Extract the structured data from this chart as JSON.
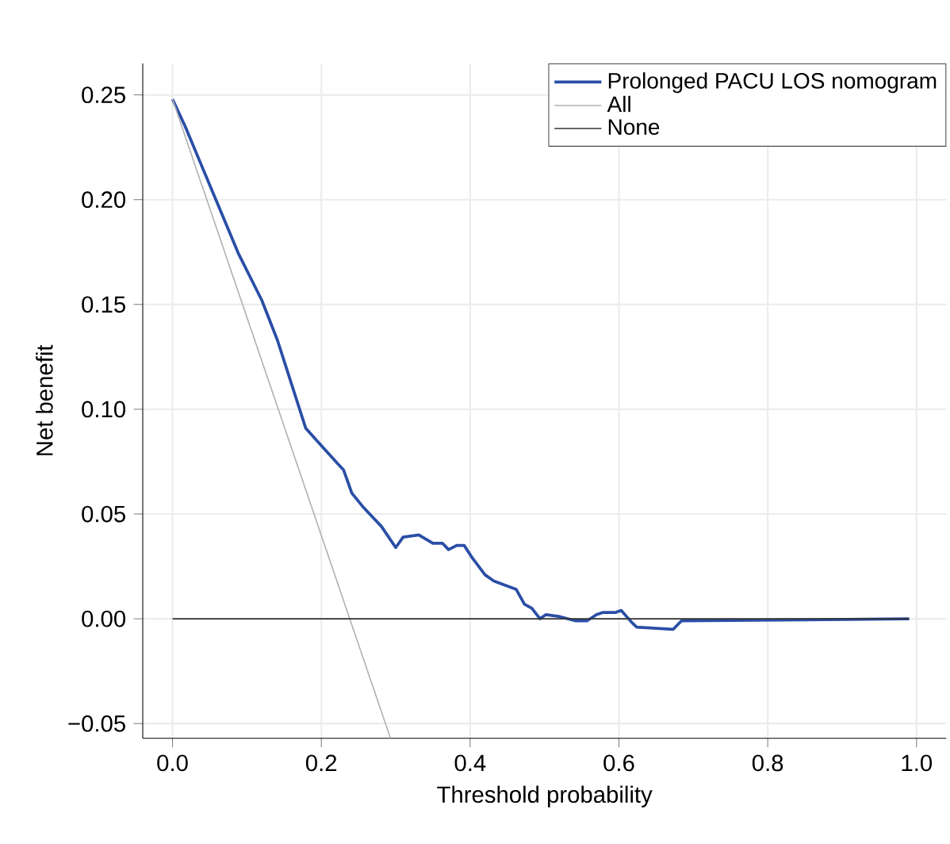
{
  "chart_data": {
    "type": "line",
    "xlabel": "Threshold probability",
    "ylabel": "Net benefit",
    "xlim": [
      -0.04,
      1.04
    ],
    "ylim": [
      -0.057,
      0.265
    ],
    "xticks": [
      {
        "value": 0,
        "label": "0.0"
      },
      {
        "value": 0.2,
        "label": "0.2"
      },
      {
        "value": 0.4,
        "label": "0.4"
      },
      {
        "value": 0.6,
        "label": "0.6"
      },
      {
        "value": 0.8,
        "label": "0.8"
      },
      {
        "value": 1,
        "label": "1.0"
      }
    ],
    "yticks": [
      {
        "value": -0.05,
        "label": "−0.05"
      },
      {
        "value": 0,
        "label": "0.00"
      },
      {
        "value": 0.05,
        "label": "0.05"
      },
      {
        "value": 0.1,
        "label": "0.10"
      },
      {
        "value": 0.15,
        "label": "0.15"
      },
      {
        "value": 0.2,
        "label": "0.20"
      },
      {
        "value": 0.25,
        "label": "0.25"
      }
    ],
    "grid": true,
    "legend": "top right",
    "series": [
      {
        "name": "Prolonged PACU LOS nomogram",
        "color": "#2a4ea6",
        "x": [
          0,
          0.017,
          0.089,
          0.12,
          0.141,
          0.179,
          0.194,
          0.222,
          0.23,
          0.241,
          0.257,
          0.281,
          0.3,
          0.31,
          0.331,
          0.35,
          0.363,
          0.371,
          0.382,
          0.392,
          0.403,
          0.42,
          0.432,
          0.447,
          0.462,
          0.473,
          0.483,
          0.494,
          0.502,
          0.521,
          0.542,
          0.557,
          0.57,
          0.578,
          0.595,
          0.603,
          0.618,
          0.624,
          0.673,
          0.684,
          0.99
        ],
        "values": [
          0.248,
          0.235,
          0.174,
          0.152,
          0.133,
          0.091,
          0.085,
          0.074,
          0.071,
          0.06,
          0.053,
          0.044,
          0.034,
          0.039,
          0.04,
          0.036,
          0.036,
          0.033,
          0.035,
          0.035,
          0.029,
          0.021,
          0.018,
          0.016,
          0.014,
          0.007,
          0.005,
          0.0,
          0.002,
          0.001,
          -0.001,
          -0.001,
          0.002,
          0.003,
          0.003,
          0.004,
          -0.002,
          -0.004,
          -0.005,
          -0.001,
          0.0
        ]
      },
      {
        "name": "All",
        "color": "#b0b0b0",
        "x": [
          0,
          0.293
        ],
        "values": [
          0.248,
          -0.057
        ]
      },
      {
        "name": "None",
        "color": "#333333",
        "x": [
          0,
          0.99
        ],
        "values": [
          0,
          0
        ]
      }
    ]
  }
}
